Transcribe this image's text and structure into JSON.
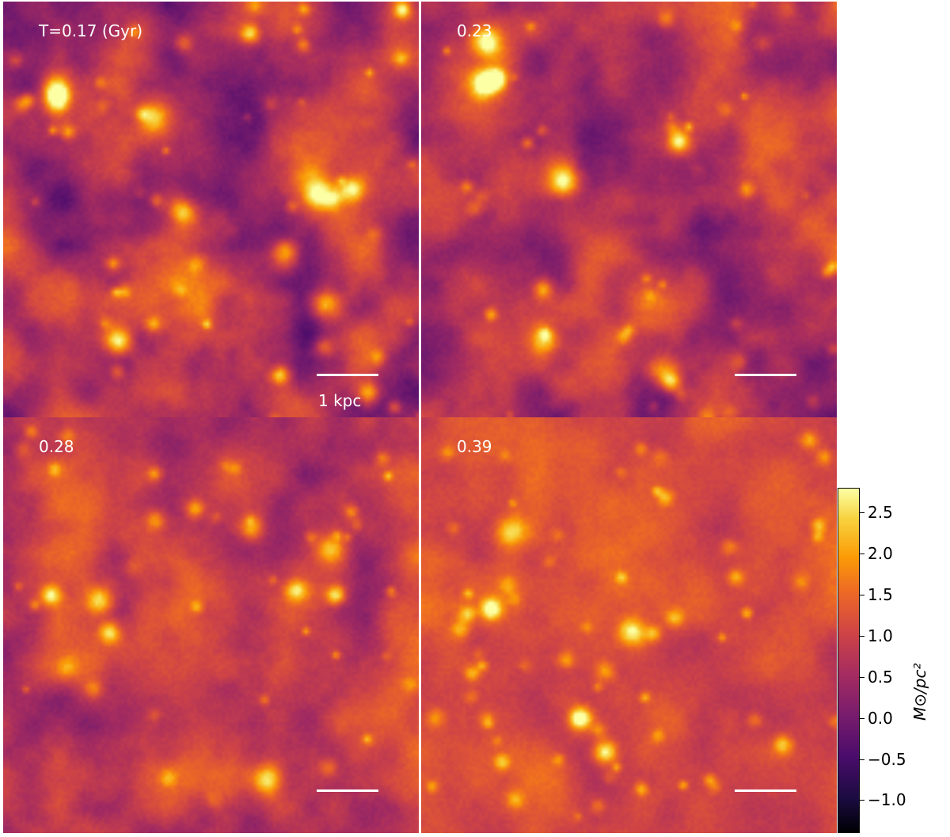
{
  "panels": [
    {
      "label": "T=0.17 (Gyr)",
      "scalebar_label": "1 kpc"
    },
    {
      "label": "0.23"
    },
    {
      "label": "0.28"
    },
    {
      "label": "0.39"
    }
  ],
  "colorbar": {
    "title": "M⊙/pc²",
    "ticks": [
      "2.5",
      "2.0",
      "1.5",
      "1.0",
      "0.5",
      "0.0",
      "−0.5",
      "−1.0"
    ],
    "range": [
      -1.4,
      2.8
    ],
    "colormap": "inferno"
  }
}
